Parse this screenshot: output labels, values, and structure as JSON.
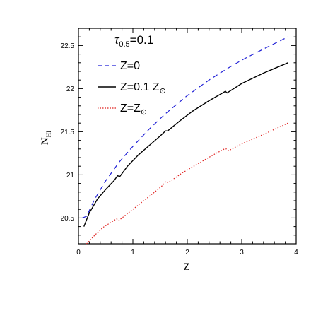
{
  "chart_data": {
    "type": "line",
    "title": "",
    "annotation": {
      "tau": "τ",
      "sub": "0.5",
      "rest": "=0.1"
    },
    "xlabel": "Z",
    "ylabel": {
      "main": "N",
      "sub": "HI"
    },
    "xlim": [
      0,
      4
    ],
    "ylim": [
      20.2,
      22.7
    ],
    "xticks": [
      0,
      1,
      2,
      3,
      4
    ],
    "yticks": [
      20.5,
      21,
      21.5,
      22,
      22.5
    ],
    "ytick_labels": [
      "20.5",
      "21",
      "21.5",
      "22",
      "22.5"
    ],
    "grid": false,
    "legend_position": "top-left",
    "series": [
      {
        "name": "Z=0",
        "color": "#1f1fd6",
        "style": "dashed",
        "x": [
          0.07,
          0.15,
          0.3,
          0.5,
          0.75,
          1.0,
          1.3,
          1.6,
          2.0,
          2.4,
          2.7,
          3.0,
          3.4,
          3.85
        ],
        "y": [
          20.5,
          20.52,
          20.72,
          20.93,
          21.15,
          21.33,
          21.53,
          21.71,
          21.92,
          22.1,
          22.22,
          22.33,
          22.46,
          22.6
        ]
      },
      {
        "name_main": "Z=0.1  Z",
        "name_sub": "⊙",
        "color": "#000000",
        "style": "solid",
        "x": [
          0.1,
          0.2,
          0.35,
          0.5,
          0.65,
          0.72,
          0.76,
          0.9,
          1.1,
          1.3,
          1.5,
          1.6,
          1.64,
          1.85,
          2.1,
          2.4,
          2.65,
          2.7,
          2.73,
          3.0,
          3.4,
          3.85
        ],
        "y": [
          20.4,
          20.56,
          20.72,
          20.83,
          20.93,
          20.99,
          20.98,
          21.1,
          21.23,
          21.34,
          21.45,
          21.51,
          21.51,
          21.62,
          21.74,
          21.86,
          21.95,
          21.97,
          21.95,
          22.06,
          22.18,
          22.3
        ]
      },
      {
        "name_main": "Z=Z",
        "name_sub": "⊙",
        "color": "#e0201e",
        "style": "dotted",
        "x": [
          0.15,
          0.3,
          0.45,
          0.6,
          0.7,
          0.74,
          0.8,
          1.0,
          1.2,
          1.4,
          1.55,
          1.6,
          1.65,
          1.9,
          2.2,
          2.5,
          2.68,
          2.72,
          2.76,
          3.0,
          3.4,
          3.85
        ],
        "y": [
          20.2,
          20.3,
          20.39,
          20.45,
          20.49,
          20.47,
          20.5,
          20.6,
          20.7,
          20.8,
          20.88,
          20.92,
          20.91,
          21.02,
          21.13,
          21.24,
          21.3,
          21.3,
          21.28,
          21.36,
          21.47,
          21.6
        ]
      }
    ]
  }
}
